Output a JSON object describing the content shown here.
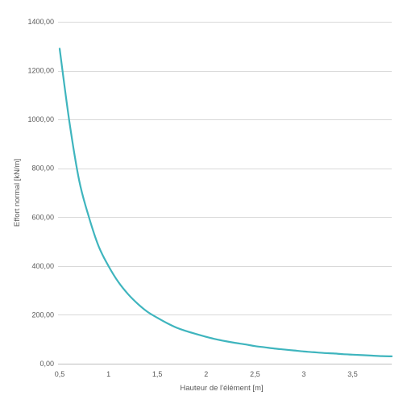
{
  "chart_data": {
    "type": "line",
    "title": "",
    "xlabel": "Hauteur de l'élément [m]",
    "ylabel": "Effort normal [kN/m]",
    "xlim": [
      0.5,
      3.9
    ],
    "ylim": [
      0,
      1400
    ],
    "x_ticks": [
      {
        "value": 0.5,
        "label": "0,5"
      },
      {
        "value": 1,
        "label": "1"
      },
      {
        "value": 1.5,
        "label": "1,5"
      },
      {
        "value": 2,
        "label": "2"
      },
      {
        "value": 2.5,
        "label": "2,5"
      },
      {
        "value": 3,
        "label": "3"
      },
      {
        "value": 3.5,
        "label": "3,5"
      }
    ],
    "y_ticks": [
      {
        "value": 0,
        "label": "0,00"
      },
      {
        "value": 200,
        "label": "200,00"
      },
      {
        "value": 400,
        "label": "400,00"
      },
      {
        "value": 600,
        "label": "600,00"
      },
      {
        "value": 800,
        "label": "800,00"
      },
      {
        "value": 1000,
        "label": "1000,00"
      },
      {
        "value": 1200,
        "label": "1200,00"
      },
      {
        "value": 1400,
        "label": "1400,00"
      }
    ],
    "grid": true,
    "legend": "none",
    "series": [
      {
        "color": "#3fb5be",
        "x": [
          0.5,
          0.6,
          0.7,
          0.8,
          0.9,
          1.0,
          1.1,
          1.2,
          1.3,
          1.4,
          1.5,
          1.6,
          1.7,
          1.8,
          1.9,
          2.0,
          2.1,
          2.2,
          2.3,
          2.4,
          2.5,
          2.6,
          2.7,
          2.8,
          2.9,
          3.0,
          3.1,
          3.2,
          3.3,
          3.4,
          3.5,
          3.6,
          3.7,
          3.8,
          3.9
        ],
        "y": [
          1290,
          990,
          750,
          600,
          480,
          400,
          335,
          285,
          245,
          212,
          188,
          166,
          147,
          133,
          121,
          110,
          100,
          92,
          85,
          79,
          72,
          67,
          62,
          58,
          54,
          50,
          47,
          44,
          42,
          39,
          37,
          35,
          33,
          31,
          30
        ]
      }
    ]
  }
}
